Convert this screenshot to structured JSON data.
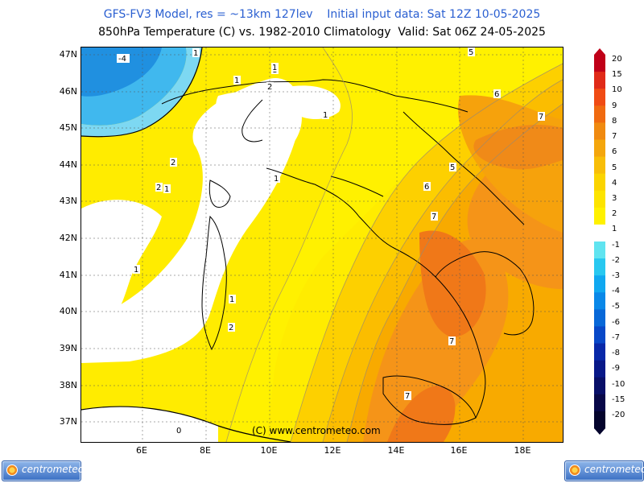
{
  "header": {
    "line1": "GFS-FV3 Model, res = ~13km 127lev    Initial input data: Sat 12Z 10-05-2025",
    "line2": "850hPa Temperature (C) vs. 1982-2010 Climatology  Valid: Sat 06Z 24-05-2025"
  },
  "axes": {
    "lat_labels": [
      "47N",
      "46N",
      "45N",
      "44N",
      "43N",
      "42N",
      "41N",
      "40N",
      "39N",
      "38N",
      "37N"
    ],
    "lon_labels": [
      "6E",
      "8E",
      "10E",
      "12E",
      "14E",
      "16E",
      "18E"
    ]
  },
  "contour_labels": [
    "-4",
    "1",
    "1",
    "2",
    "1",
    "1",
    "2",
    "2",
    "1",
    "1",
    "1",
    "1",
    "1",
    "2",
    "5",
    "6",
    "7",
    "5",
    "6",
    "7",
    "7",
    "7",
    "0"
  ],
  "colorbar": {
    "labels": [
      "20",
      "15",
      "10",
      "9",
      "8",
      "7",
      "6",
      "5",
      "4",
      "3",
      "2",
      "1",
      "-1",
      "-2",
      "-3",
      "-4",
      "-5",
      "-6",
      "-7",
      "-8",
      "-9",
      "-10",
      "-15",
      "-20"
    ],
    "colors": [
      "#c00018",
      "#e02a18",
      "#f04b14",
      "#f06a10",
      "#f08a10",
      "#f4a60c",
      "#f8be08",
      "#fbd400",
      "#fde400",
      "#fff100",
      "#ffffff",
      "#60e4f0",
      "#28c8f0",
      "#10a8f0",
      "#0a88e8",
      "#0868d8",
      "#0848c8",
      "#0828a8",
      "#081888",
      "#080f68",
      "#080848",
      "#04042c"
    ]
  },
  "credit": "(C) www.centrometeo.com",
  "logos": {
    "left": "centrometeo",
    "right": "centrometeo"
  },
  "colors": {
    "title_blue": "#2a5fd1",
    "anomaly_white": "#ffffff",
    "yellow": "#ffec00",
    "orange_mid": "#f8b400",
    "orange_dark": "#f07818",
    "blue_cold": "#3fb8ee"
  }
}
